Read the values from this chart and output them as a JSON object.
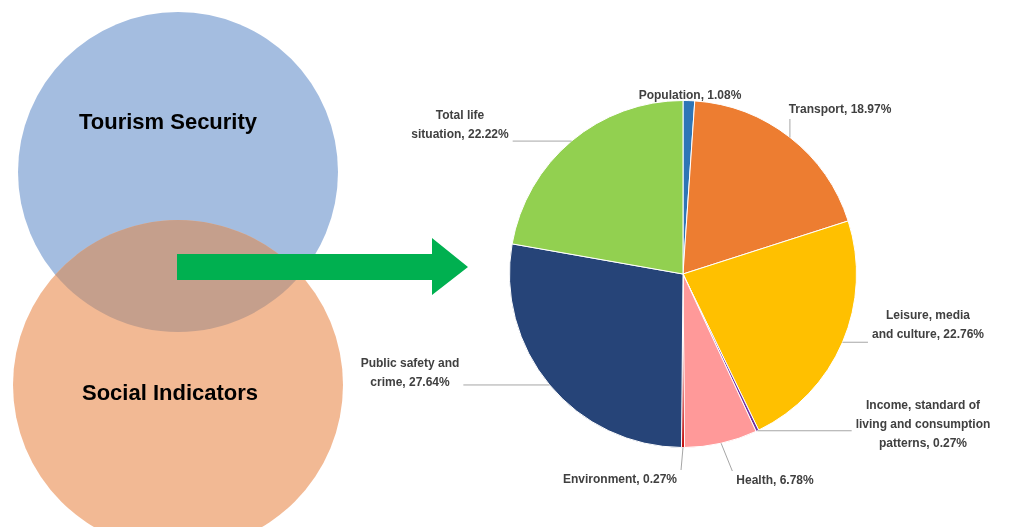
{
  "chart_data": {
    "type": "pie",
    "categories": [
      "Population",
      "Transport",
      "Leisure, media and culture",
      "Income, standard of living and consumption patterns",
      "Health",
      "Environment",
      "Public safety and crime",
      "Total life situation"
    ],
    "values": [
      1.08,
      18.97,
      22.76,
      0.27,
      6.78,
      0.27,
      27.64,
      22.22
    ],
    "value_labels": [
      "1.08%",
      "18.97%",
      "22.76%",
      "0.27%",
      "6.78%",
      "0.27%",
      "27.64%",
      "22.22%"
    ],
    "colors": [
      "#2e75b6",
      "#ed7d31",
      "#ffc000",
      "#7030a0",
      "#ff9999",
      "#c00000",
      "#264478",
      "#92d050"
    ],
    "legend": false,
    "annotations": [
      "Tourism Security",
      "Social Indicators"
    ]
  }
}
